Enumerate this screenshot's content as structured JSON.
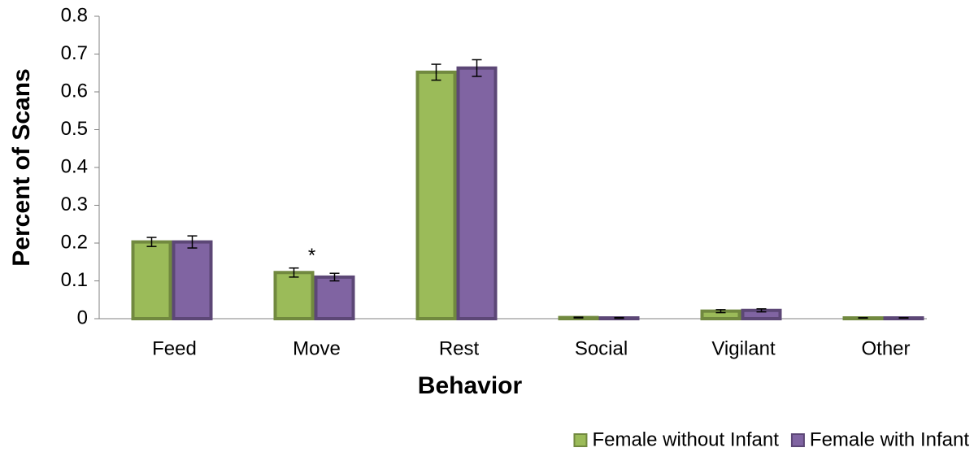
{
  "chart_data": {
    "type": "bar",
    "x_label": "Behavior",
    "y_label": "Percent of Scans",
    "categories": [
      "Feed",
      "Move",
      "Rest",
      "Social",
      "Vigilant",
      "Other"
    ],
    "series": [
      {
        "name": "Female without Infant",
        "color": "#9bbb59",
        "stroke": "#71893f",
        "values": [
          0.203,
          0.122,
          0.652,
          0.003,
          0.02,
          0.002
        ],
        "errors": [
          0.012,
          0.012,
          0.021,
          0.001,
          0.004,
          0.0005
        ]
      },
      {
        "name": "Female with Infant",
        "color": "#8064a2",
        "stroke": "#5c4776",
        "values": [
          0.203,
          0.11,
          0.663,
          0.002,
          0.022,
          0.002
        ],
        "errors": [
          0.016,
          0.01,
          0.022,
          0.001,
          0.004,
          0.0005
        ]
      }
    ],
    "annotations": [
      {
        "text": "*",
        "category": 1,
        "series": 0
      }
    ],
    "ylim": [
      0,
      0.8
    ],
    "yticks": [
      0,
      0.1,
      0.2,
      0.3,
      0.4,
      0.5,
      0.6,
      0.7,
      0.8
    ],
    "grid": false,
    "legend": "bottom-right"
  }
}
